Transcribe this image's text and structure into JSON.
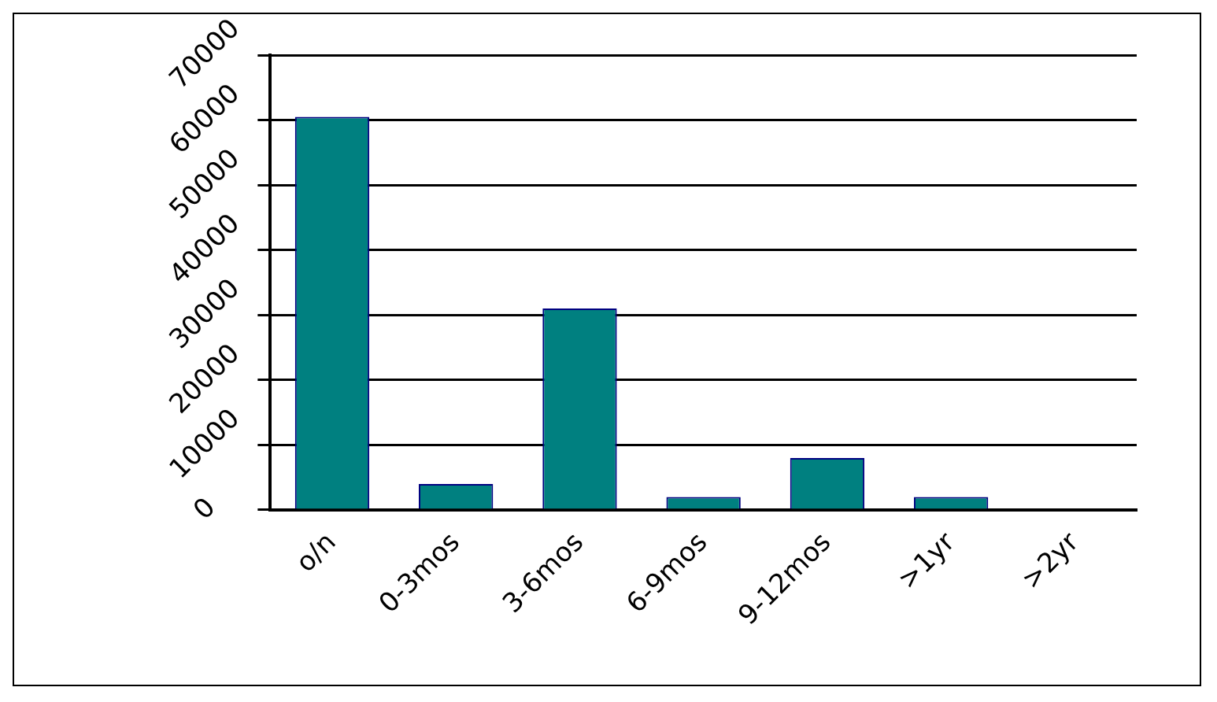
{
  "chart_data": {
    "type": "bar",
    "categories": [
      "o/n",
      "0-3mos",
      "3-6mos",
      "6-9mos",
      "9-12mos",
      ">1yr",
      ">2yr"
    ],
    "values": [
      60500,
      4000,
      31000,
      2000,
      8000,
      2000,
      0
    ],
    "color": "#008080",
    "ylim": [
      0,
      70000
    ],
    "yticks": [
      0,
      10000,
      20000,
      30000,
      40000,
      50000,
      60000,
      70000
    ],
    "grid": "y",
    "legend": false
  }
}
